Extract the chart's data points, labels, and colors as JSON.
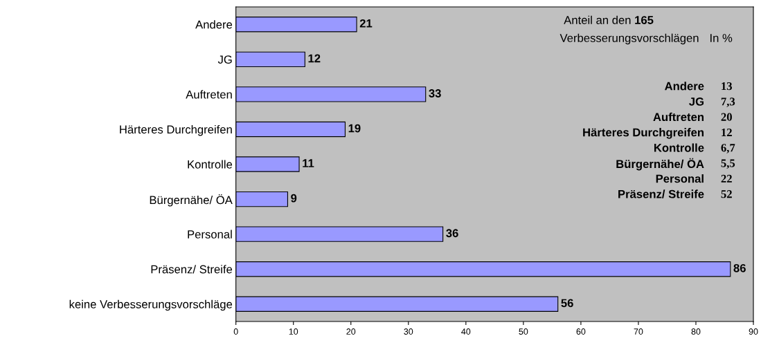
{
  "chart_data": {
    "type": "bar",
    "orientation": "horizontal",
    "categories": [
      "Andere",
      "JG",
      "Auftreten",
      "Härteres Durchgreifen",
      "Kontrolle",
      "Bürgernähe/ ÖA",
      "Personal",
      "Präsenz/ Streife",
      "keine Verbesserungsvorschläge"
    ],
    "values": [
      21,
      12,
      33,
      19,
      11,
      9,
      36,
      86,
      56
    ],
    "color": "#9999ff",
    "data_labels": true,
    "grid": false,
    "xlim": [
      0,
      90
    ],
    "xticks": [
      0,
      10,
      20,
      30,
      40,
      50,
      60,
      70,
      80,
      90
    ],
    "annotations": [
      "Anteil an den",
      "165",
      "Verbesserungsvorschlägen",
      "In %",
      "Andere",
      "13",
      "JG",
      "7,3",
      "Auftreten",
      "20",
      "Härteres Durchgreifen",
      "12",
      "Kontrolle",
      "6,7",
      "Bürgernähe/ ÖA",
      "5,5",
      "Personal",
      "22",
      "Präsenz/ Streife",
      "52"
    ]
  }
}
